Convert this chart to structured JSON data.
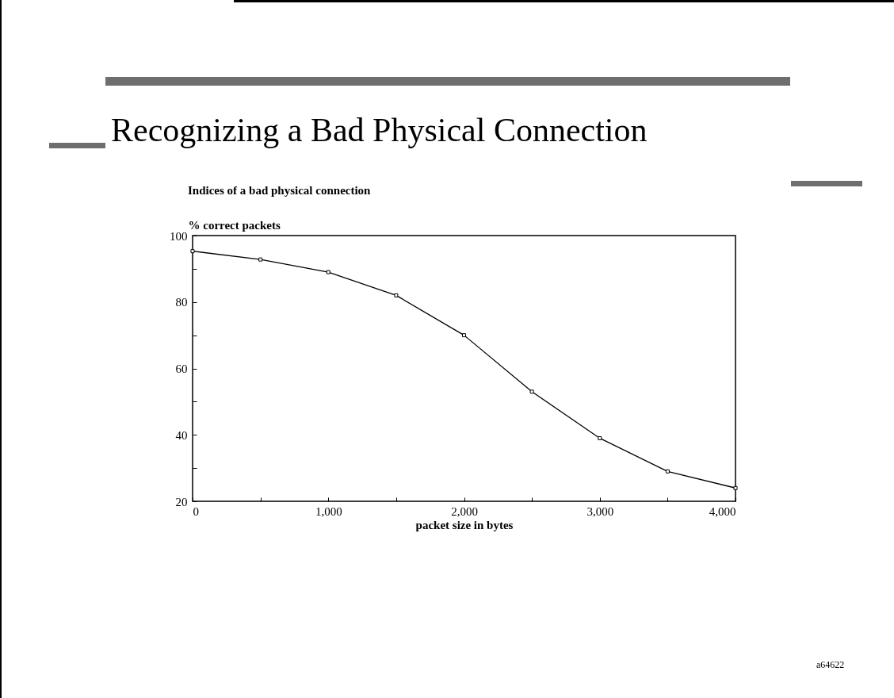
{
  "chart_data": {
    "type": "line",
    "title": "Recognizing a Bad Physical Connection",
    "subtitle": "Indices of a bad physical connection",
    "ylabel": "% correct packets",
    "xlabel": "packet size in bytes",
    "x": [
      0,
      500,
      1000,
      1500,
      2000,
      2500,
      3000,
      3500,
      4000
    ],
    "series": [
      {
        "color": "#000000",
        "values": [
          95.3,
          92.8,
          89,
          82,
          70,
          53,
          39,
          29,
          24
        ]
      }
    ],
    "xlim": [
      0,
      4000
    ],
    "ylim": [
      20,
      100
    ],
    "xticks": [
      0,
      {
        "value": 500,
        "label": null
      },
      {
        "value": 1000,
        "label": "1,000"
      },
      {
        "value": 1500,
        "label": null
      },
      {
        "value": 2000,
        "label": "2,000"
      },
      {
        "value": 2500,
        "label": null
      },
      {
        "value": 3000,
        "label": "3,000"
      },
      {
        "value": 3500,
        "label": null
      },
      {
        "value": 4000,
        "label": "4,000"
      }
    ],
    "yticks": [
      20,
      {
        "value": 30,
        "label": null
      },
      40,
      {
        "value": 50,
        "label": null
      },
      60,
      {
        "value": 70,
        "label": null
      },
      80,
      {
        "value": 90,
        "label": null
      },
      100
    ],
    "marker": "square",
    "line_style": "solid",
    "annotations": [
      "a64622"
    ]
  }
}
